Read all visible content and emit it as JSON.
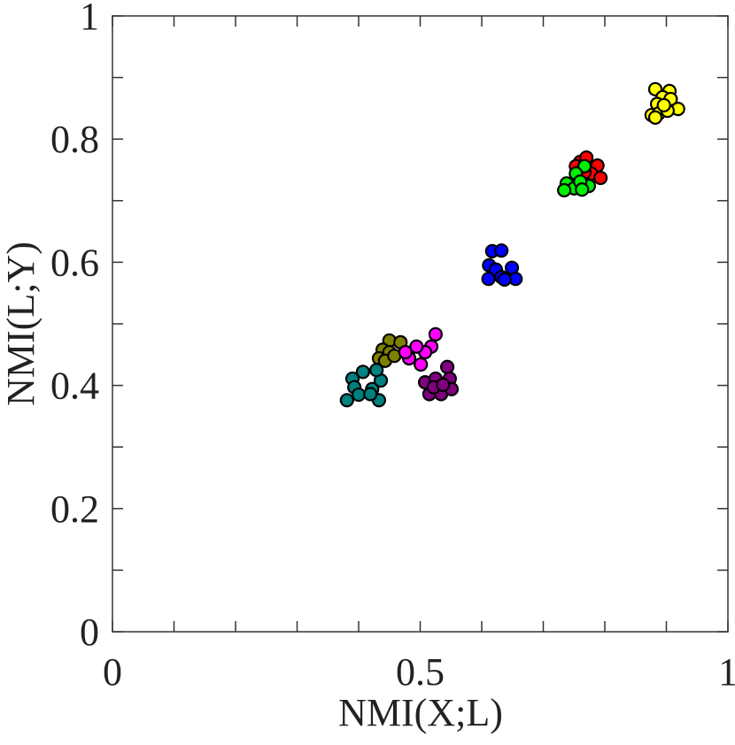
{
  "chart_data": {
    "type": "scatter",
    "x_label": "NMI(X;L)",
    "y_label": "NMI(L;Y)",
    "xlim": [
      0,
      1
    ],
    "ylim": [
      0,
      1
    ],
    "xticks": [
      0,
      0.5,
      1
    ],
    "yticks": [
      0,
      0.2,
      0.4,
      0.6,
      0.8,
      1
    ],
    "xminorticks": [
      0.1,
      0.2,
      0.3,
      0.4,
      0.6,
      0.7,
      0.8,
      0.9
    ],
    "yminorticks": [
      0.1,
      0.3,
      0.5,
      0.7,
      0.9
    ],
    "series": [
      {
        "color": "#ffff00",
        "x": [
          0.882,
          0.905,
          0.894,
          0.907,
          0.885,
          0.919,
          0.876,
          0.888,
          0.902,
          0.882,
          0.896
        ],
        "values": [
          0.881,
          0.878,
          0.868,
          0.865,
          0.857,
          0.849,
          0.839,
          0.842,
          0.846,
          0.835,
          0.855
        ]
      },
      {
        "color": "#ff0000",
        "x": [
          0.76,
          0.77,
          0.788,
          0.778,
          0.793,
          0.753,
          0.767
        ],
        "values": [
          0.763,
          0.77,
          0.757,
          0.744,
          0.737,
          0.756,
          0.746
        ]
      },
      {
        "color": "#00ee00",
        "x": [
          0.767,
          0.753,
          0.738,
          0.75,
          0.774,
          0.76,
          0.734,
          0.763
        ],
        "values": [
          0.756,
          0.744,
          0.728,
          0.72,
          0.724,
          0.731,
          0.717,
          0.718
        ]
      },
      {
        "color": "#0000ff",
        "x": [
          0.617,
          0.632,
          0.612,
          0.623,
          0.611,
          0.632,
          0.649,
          0.655,
          0.637
        ],
        "values": [
          0.618,
          0.619,
          0.595,
          0.588,
          0.573,
          0.576,
          0.591,
          0.573,
          0.572
        ]
      },
      {
        "color": "#808000",
        "x": [
          0.45,
          0.468,
          0.439,
          0.45,
          0.433,
          0.443,
          0.458
        ],
        "values": [
          0.473,
          0.47,
          0.458,
          0.454,
          0.444,
          0.44,
          0.448
        ]
      },
      {
        "color": "#ff00ff",
        "x": [
          0.525,
          0.518,
          0.508,
          0.494,
          0.482,
          0.501,
          0.476
        ],
        "values": [
          0.483,
          0.463,
          0.454,
          0.463,
          0.444,
          0.434,
          0.454
        ]
      },
      {
        "color": "#008080",
        "x": [
          0.39,
          0.407,
          0.393,
          0.381,
          0.4,
          0.422,
          0.433,
          0.436,
          0.419,
          0.429
        ],
        "values": [
          0.411,
          0.422,
          0.397,
          0.376,
          0.385,
          0.394,
          0.376,
          0.408,
          0.386,
          0.425
        ]
      },
      {
        "color": "#800080",
        "x": [
          0.508,
          0.525,
          0.544,
          0.548,
          0.515,
          0.534,
          0.551,
          0.522,
          0.537
        ],
        "values": [
          0.405,
          0.411,
          0.43,
          0.411,
          0.386,
          0.386,
          0.394,
          0.397,
          0.401
        ]
      }
    ]
  }
}
